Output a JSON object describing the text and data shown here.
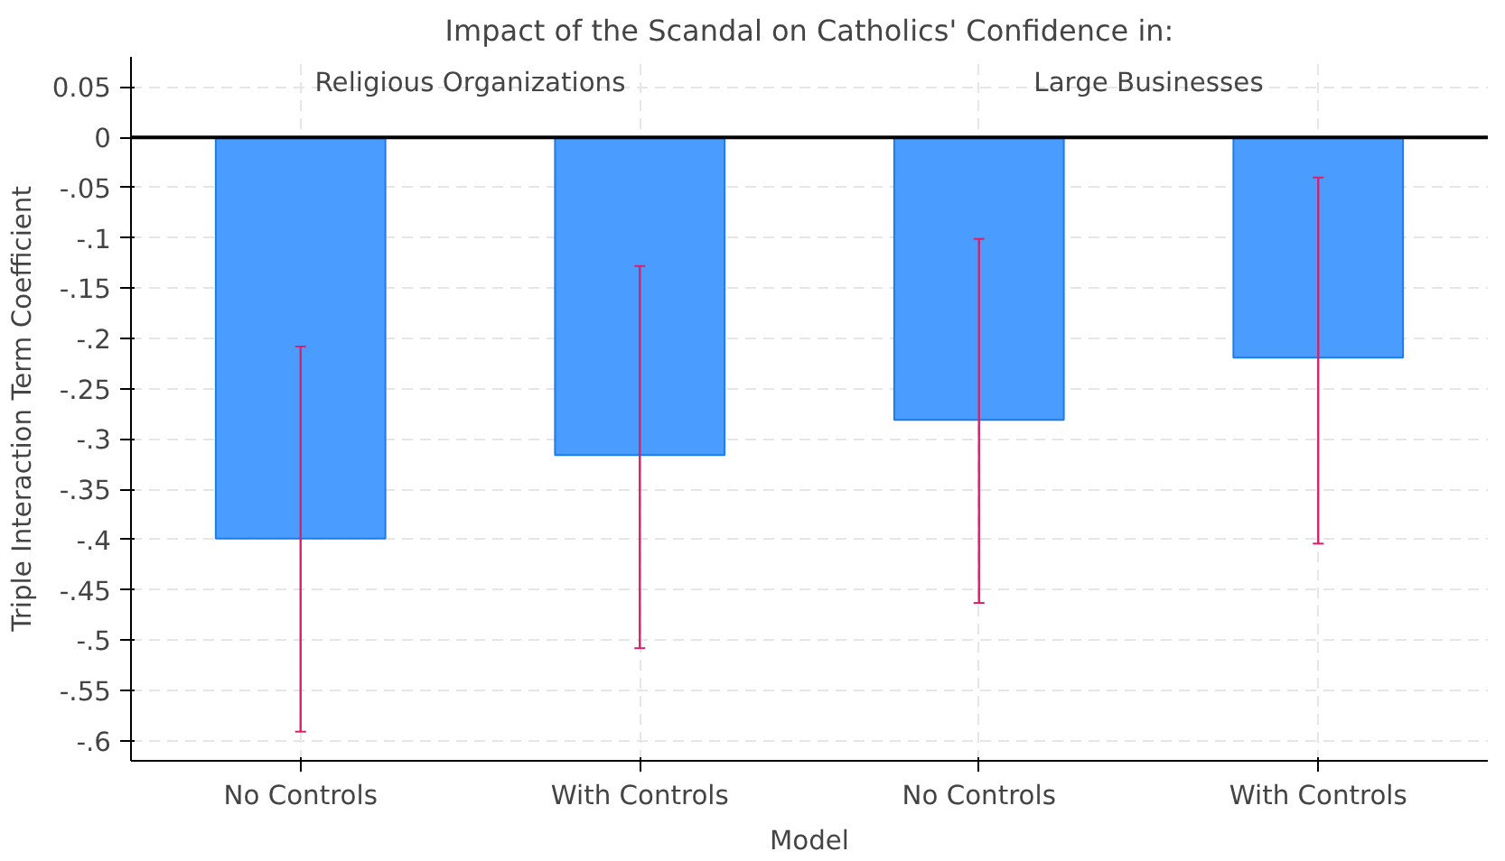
{
  "chart_data": {
    "type": "bar",
    "title": "Impact of the Scandal on Catholics' Confidence in:",
    "xlabel": "Model",
    "ylabel": "Triple Interaction Term Coefficient",
    "categories": [
      "No Controls",
      "With Controls",
      "No Controls",
      "With Controls"
    ],
    "values": [
      -0.399,
      -0.316,
      -0.281,
      -0.219
    ],
    "errors": [
      [
        -0.591,
        -0.208
      ],
      [
        -0.508,
        -0.128
      ],
      [
        -0.463,
        -0.101
      ],
      [
        -0.404,
        -0.04
      ]
    ],
    "color": "#4a9dff",
    "annotations": [
      "Religious Organizations",
      "Large Businesses"
    ],
    "ref_lines": [
      {
        "axis": "y",
        "value": 0,
        "label": null,
        "color": "#000000"
      }
    ],
    "ylim": [
      -0.62,
      0.08
    ],
    "yticks": [
      {
        "value": 0.05,
        "label": "0.05"
      },
      0,
      {
        "value": -0.05,
        "label": "-.05"
      },
      {
        "value": -0.1,
        "label": "-.1"
      },
      {
        "value": -0.15,
        "label": "-.15"
      },
      {
        "value": -0.2,
        "label": "-.2"
      },
      {
        "value": -0.25,
        "label": "-.25"
      },
      {
        "value": -0.3,
        "label": "-.3"
      },
      {
        "value": -0.35,
        "label": "-.35"
      },
      {
        "value": -0.4,
        "label": "-.4"
      },
      {
        "value": -0.45,
        "label": "-.45"
      },
      {
        "value": -0.5,
        "label": "-.5"
      },
      {
        "value": -0.55,
        "label": "-.55"
      },
      {
        "value": -0.6,
        "label": "-.6"
      }
    ],
    "grid": true
  }
}
